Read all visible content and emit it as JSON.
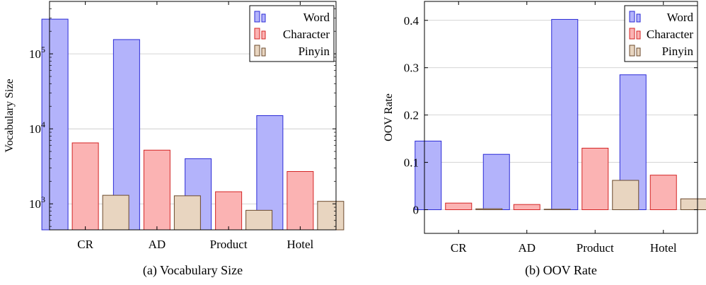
{
  "chart_data": [
    {
      "type": "bar",
      "caption": "(a)  Vocabulary Size",
      "ylabel": "Vocabulary Size",
      "yscale": "log",
      "ylim": [
        450,
        500000
      ],
      "yticks": [
        1000,
        10000,
        100000
      ],
      "ytick_labels": [
        {
          "base": "10",
          "exp": "3"
        },
        {
          "base": "10",
          "exp": "4"
        },
        {
          "base": "10",
          "exp": "5"
        }
      ],
      "categories": [
        "CR",
        "AD",
        "Product",
        "Hotel"
      ],
      "series": [
        {
          "name": "Word",
          "values": [
            290000,
            155000,
            4000,
            15000
          ]
        },
        {
          "name": "Character",
          "values": [
            6500,
            5200,
            1450,
            2700
          ]
        },
        {
          "name": "Pinyin",
          "values": [
            1300,
            1280,
            820,
            1080
          ]
        }
      ],
      "grid": "horizontal",
      "legend_position": "top-right"
    },
    {
      "type": "bar",
      "caption": "(b)  OOV Rate",
      "ylabel": "OOV Rate",
      "yscale": "linear",
      "ylim": [
        -0.05,
        0.44
      ],
      "yticks": [
        0,
        0.1,
        0.2,
        0.3,
        0.4
      ],
      "ytick_labels": [
        "0",
        "0.1",
        "0.2",
        "0.3",
        "0.4"
      ],
      "categories": [
        "CR",
        "AD",
        "Product",
        "Hotel"
      ],
      "series": [
        {
          "name": "Word",
          "values": [
            0.145,
            0.117,
            0.402,
            0.285
          ]
        },
        {
          "name": "Character",
          "values": [
            0.014,
            0.011,
            0.13,
            0.073
          ]
        },
        {
          "name": "Pinyin",
          "values": [
            0.002,
            0.001,
            0.062,
            0.023
          ]
        }
      ],
      "grid": "horizontal",
      "legend_position": "top-right"
    }
  ],
  "colors": {
    "Word": {
      "fill": "#b3b3fb",
      "stroke": "#2b2bd6"
    },
    "Character": {
      "fill": "#fbb3b3",
      "stroke": "#d42424"
    },
    "Pinyin": {
      "fill": "#e8d5c0",
      "stroke": "#6b4a2d"
    },
    "grid": "#c8c8c8",
    "axis": "#000000"
  }
}
